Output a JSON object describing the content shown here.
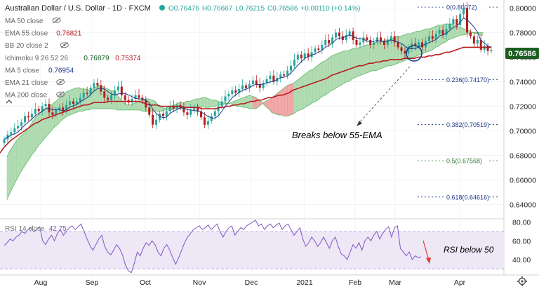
{
  "header": {
    "symbol": "Australian Dollar / U.S. Dollar · 1D · FXCM",
    "open": "O0.76476",
    "high": "H0.76667",
    "low": "L0.76215",
    "close": "C0.76586",
    "change": "+0.00110 (+0.14%)"
  },
  "indicators": [
    {
      "label": "MA 50 close",
      "values": [],
      "colors": []
    },
    {
      "label": "EMA 55 close",
      "values": [
        "0.76821"
      ],
      "colors": [
        "#b71c1c"
      ]
    },
    {
      "label": "BB 20 close 2",
      "values": [],
      "colors": []
    },
    {
      "label": "Ichimoku 9 26 52 26",
      "values": [
        "0.76879",
        "0.75374"
      ],
      "colors": [
        "#1b5e20",
        "#b71c1c"
      ]
    },
    {
      "label": "MA 5 close",
      "values": [
        "0.76954"
      ],
      "colors": [
        "#1e3a8a"
      ]
    },
    {
      "label": "EMA 21 close",
      "values": [],
      "colors": []
    },
    {
      "label": "MA 200 close",
      "values": [],
      "colors": []
    }
  ],
  "rsi_label": {
    "name": "RSI 14 close",
    "value": "42.75"
  },
  "price_badge": "0.76586",
  "colors": {
    "up": "#26a69a",
    "down": "#b71c1c",
    "ema": "#b71c1c",
    "ma5": "#1e3a8a",
    "cloud_green": "#a5d6a7",
    "cloud_red": "#ef9a9a",
    "rsi": "#7e57c2",
    "fib": "#1e3a8a",
    "fib_green": "#2e7d32",
    "annotation": "#e53935"
  },
  "annotations": {
    "ema_break": "Breaks below 55-EMA",
    "rsi_below": "RSI below 50"
  },
  "chart_data": {
    "type": "candlestick",
    "title": "Australian Dollar / U.S. Dollar · 1D · FXCM",
    "price_axis": {
      "range": [
        0.6295,
        0.8065
      ],
      "ticks": [
        "0.80000",
        "0.78000",
        "0.76000",
        "0.74000",
        "0.72000",
        "0.70000",
        "0.68000",
        "0.66000",
        "0.64000"
      ]
    },
    "rsi_axis": {
      "range": [
        25,
        82
      ],
      "ticks": [
        "80.00",
        "60.00",
        "40.00"
      ],
      "band": [
        30,
        70
      ]
    },
    "time_axis": {
      "labels": [
        "Aug",
        "Sep",
        "Oct",
        "Nov",
        "Dec",
        "2021",
        "Feb",
        "Mar",
        "Apr"
      ]
    },
    "fibonacci": [
      {
        "level": "0",
        "price": 0.80072
      },
      {
        "level": "0.236",
        "price": 0.7417
      },
      {
        "level": "0.382",
        "price": 0.70519
      },
      {
        "level": "0.5",
        "price": 0.67568
      },
      {
        "level": "0.618",
        "price": 0.64616
      }
    ],
    "closes": [
      0.693,
      0.697,
      0.699,
      0.702,
      0.704,
      0.707,
      0.712,
      0.711,
      0.714,
      0.718,
      0.716,
      0.72,
      0.722,
      0.715,
      0.713,
      0.717,
      0.719,
      0.716,
      0.721,
      0.724,
      0.722,
      0.724,
      0.727,
      0.731,
      0.73,
      0.735,
      0.739,
      0.737,
      0.732,
      0.727,
      0.725,
      0.729,
      0.733,
      0.736,
      0.729,
      0.725,
      0.723,
      0.726,
      0.729,
      0.727,
      0.725,
      0.719,
      0.713,
      0.705,
      0.709,
      0.714,
      0.712,
      0.716,
      0.72,
      0.718,
      0.721,
      0.719,
      0.715,
      0.713,
      0.717,
      0.719,
      0.716,
      0.711,
      0.705,
      0.708,
      0.712,
      0.716,
      0.72,
      0.724,
      0.728,
      0.73,
      0.733,
      0.731,
      0.734,
      0.737,
      0.735,
      0.738,
      0.741,
      0.738,
      0.735,
      0.739,
      0.742,
      0.745,
      0.74,
      0.743,
      0.746,
      0.745,
      0.749,
      0.753,
      0.758,
      0.762,
      0.759,
      0.763,
      0.76,
      0.764,
      0.767,
      0.766,
      0.77,
      0.774,
      0.771,
      0.776,
      0.78,
      0.777,
      0.774,
      0.778,
      0.781,
      0.774,
      0.77,
      0.772,
      0.776,
      0.774,
      0.77,
      0.772,
      0.776,
      0.773,
      0.77,
      0.774,
      0.777,
      0.772,
      0.768,
      0.765,
      0.763,
      0.767,
      0.771,
      0.769,
      0.772,
      0.768,
      0.773,
      0.777,
      0.775,
      0.779,
      0.782,
      0.778,
      0.783,
      0.787,
      0.791,
      0.786,
      0.795,
      0.8,
      0.78,
      0.777,
      0.771,
      0.774,
      0.766,
      0.769,
      0.765,
      0.766
    ],
    "ema55": [
      0.682,
      0.686,
      0.689,
      0.692,
      0.694,
      0.696,
      0.698,
      0.7,
      0.702,
      0.704,
      0.706,
      0.707,
      0.709,
      0.71,
      0.711,
      0.712,
      0.713,
      0.714,
      0.715,
      0.716,
      0.717,
      0.718,
      0.719,
      0.72,
      0.721,
      0.721,
      0.722,
      0.723,
      0.723,
      0.723,
      0.723,
      0.724,
      0.724,
      0.724,
      0.724,
      0.724,
      0.724,
      0.724,
      0.724,
      0.724,
      0.724,
      0.723,
      0.722,
      0.721,
      0.721,
      0.721,
      0.72,
      0.72,
      0.72,
      0.72,
      0.72,
      0.72,
      0.72,
      0.719,
      0.719,
      0.719,
      0.719,
      0.719,
      0.718,
      0.718,
      0.718,
      0.718,
      0.718,
      0.719,
      0.719,
      0.72,
      0.72,
      0.721,
      0.721,
      0.722,
      0.722,
      0.723,
      0.724,
      0.724,
      0.725,
      0.725,
      0.726,
      0.727,
      0.727,
      0.728,
      0.729,
      0.729,
      0.73,
      0.731,
      0.733,
      0.734,
      0.735,
      0.736,
      0.737,
      0.738,
      0.739,
      0.74,
      0.741,
      0.742,
      0.743,
      0.745,
      0.746,
      0.747,
      0.748,
      0.749,
      0.75,
      0.751,
      0.752,
      0.753,
      0.753,
      0.754,
      0.755,
      0.755,
      0.756,
      0.756,
      0.757,
      0.757,
      0.758,
      0.758,
      0.758,
      0.758,
      0.759,
      0.759,
      0.759,
      0.759,
      0.76,
      0.76,
      0.76,
      0.761,
      0.761,
      0.762,
      0.762,
      0.763,
      0.764,
      0.764,
      0.765,
      0.766,
      0.767,
      0.768,
      0.768,
      0.768,
      0.768,
      0.768,
      0.768,
      0.768,
      0.768,
      0.768
    ],
    "cloud_top": [
      0.679,
      0.684,
      0.688,
      0.692,
      0.695,
      0.697,
      0.7,
      0.703,
      0.707,
      0.711,
      0.713,
      0.716,
      0.718,
      0.719,
      0.721,
      0.723,
      0.725,
      0.728,
      0.73,
      0.732,
      0.733,
      0.734,
      0.735,
      0.735,
      0.734,
      0.734,
      0.733,
      0.734,
      0.735,
      0.737,
      0.737,
      0.735,
      0.734,
      0.733,
      0.732,
      0.729,
      0.726,
      0.723,
      0.721,
      0.721,
      0.722,
      0.723,
      0.724,
      0.725,
      0.726,
      0.726,
      0.725,
      0.724,
      0.721,
      0.72,
      0.718,
      0.719,
      0.72,
      0.721,
      0.722,
      0.723,
      0.723,
      0.724,
      0.724,
      0.725,
      0.726,
      0.726,
      0.727,
      0.727,
      0.726,
      0.725,
      0.725,
      0.724,
      0.723,
      0.723,
      0.722,
      0.722,
      0.721,
      0.72,
      0.72,
      0.719,
      0.719,
      0.718,
      0.718,
      0.718,
      0.72,
      0.722,
      0.724,
      0.725,
      0.727,
      0.729,
      0.731,
      0.733,
      0.735,
      0.737,
      0.738,
      0.739,
      0.741,
      0.743,
      0.745,
      0.747,
      0.749,
      0.75,
      0.752,
      0.754,
      0.756,
      0.757,
      0.759,
      0.761,
      0.762,
      0.763,
      0.764,
      0.765,
      0.765,
      0.766,
      0.767,
      0.767,
      0.768,
      0.769,
      0.77,
      0.77,
      0.771,
      0.772,
      0.772,
      0.773,
      0.774,
      0.774,
      0.775,
      0.776,
      0.777,
      0.777,
      0.778,
      0.779,
      0.779,
      0.78,
      0.781,
      0.781,
      0.782,
      0.783,
      0.783,
      0.784,
      0.785,
      0.786,
      0.786,
      0.787,
      0.787,
      0.787,
      0.786,
      0.785,
      0.784,
      0.783,
      0.782,
      0.781,
      0.78,
      0.779,
      0.778,
      0.778
    ],
    "cloud_bottom": [
      0.644,
      0.65,
      0.655,
      0.66,
      0.665,
      0.669,
      0.673,
      0.677,
      0.681,
      0.684,
      0.688,
      0.691,
      0.694,
      0.697,
      0.7,
      0.703,
      0.705,
      0.708,
      0.71,
      0.712,
      0.713,
      0.714,
      0.715,
      0.716,
      0.716,
      0.717,
      0.717,
      0.718,
      0.718,
      0.718,
      0.718,
      0.718,
      0.718,
      0.718,
      0.718,
      0.717,
      0.717,
      0.717,
      0.717,
      0.717,
      0.717,
      0.717,
      0.717,
      0.716,
      0.716,
      0.716,
      0.716,
      0.716,
      0.716,
      0.716,
      0.717,
      0.717,
      0.717,
      0.718,
      0.718,
      0.718,
      0.718,
      0.719,
      0.719,
      0.719,
      0.719,
      0.72,
      0.72,
      0.719,
      0.719,
      0.72,
      0.72,
      0.721,
      0.721,
      0.722,
      0.722,
      0.723,
      0.724,
      0.725,
      0.726,
      0.727,
      0.728,
      0.729,
      0.728,
      0.727,
      0.725,
      0.723,
      0.72,
      0.718,
      0.715,
      0.714,
      0.713,
      0.713,
      0.712,
      0.712,
      0.713,
      0.714,
      0.716,
      0.717,
      0.718,
      0.72,
      0.721,
      0.723,
      0.724,
      0.726,
      0.728,
      0.729,
      0.731,
      0.733,
      0.734,
      0.736,
      0.737,
      0.739,
      0.74,
      0.741,
      0.743,
      0.744,
      0.745,
      0.746,
      0.747,
      0.748,
      0.749,
      0.749,
      0.75,
      0.751,
      0.752,
      0.753,
      0.753,
      0.754,
      0.755,
      0.756,
      0.757,
      0.758,
      0.759,
      0.76,
      0.761,
      0.762,
      0.763,
      0.764,
      0.765,
      0.766,
      0.768,
      0.769,
      0.771,
      0.772,
      0.774,
      0.775,
      0.776,
      0.777,
      0.778,
      0.778,
      0.779,
      0.779,
      0.78,
      0.78,
      0.78,
      0.78
    ],
    "rsi": [
      55,
      58,
      62,
      60,
      64,
      66,
      70,
      68,
      72,
      74,
      70,
      72,
      75,
      60,
      56,
      62,
      66,
      60,
      68,
      72,
      66,
      70,
      74,
      76,
      72,
      75,
      78,
      70,
      62,
      55,
      50,
      56,
      62,
      66,
      54,
      48,
      45,
      50,
      56,
      52,
      45,
      34,
      28,
      26,
      36,
      48,
      44,
      52,
      58,
      55,
      60,
      56,
      48,
      44,
      52,
      56,
      50,
      42,
      35,
      42,
      50,
      58,
      64,
      68,
      72,
      74,
      76,
      72,
      74,
      77,
      72,
      75,
      78,
      70,
      64,
      70,
      74,
      76,
      66,
      70,
      74,
      72,
      76,
      78,
      80,
      82,
      76,
      78,
      72,
      76,
      78,
      74,
      77,
      79,
      72,
      76,
      78,
      72,
      66,
      70,
      74,
      62,
      54,
      58,
      64,
      60,
      54,
      58,
      64,
      58,
      52,
      60,
      64,
      54,
      46,
      44,
      40,
      48,
      56,
      52,
      58,
      50,
      60,
      64,
      60,
      66,
      70,
      62,
      68,
      72,
      75,
      64,
      74,
      76,
      52,
      48,
      44,
      48,
      40,
      44,
      42,
      43
    ]
  },
  "time_bar": {
    "settings_icon": "gear-icon"
  }
}
